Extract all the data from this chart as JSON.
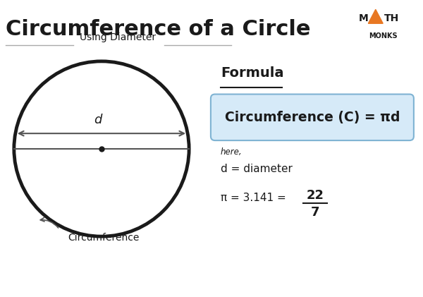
{
  "title": "Circumference of a Circle",
  "subtitle": "Using Diameter",
  "bg_color": "#ffffff",
  "title_color": "#1a1a1a",
  "subtitle_color": "#1a1a1a",
  "formula_label": "Formula",
  "formula_text": "Circumference (C) = πd",
  "formula_box_color": "#d6eaf8",
  "formula_box_edge": "#7fb3d3",
  "here_text": "here,",
  "d_text": "d = diameter",
  "pi_text": "π = 3.141 = ",
  "frac_num": "22",
  "frac_den": "7",
  "circle_color": "#1a1a1a",
  "circle_lw": 3.5,
  "diameter_line_color": "#555555",
  "arrow_color": "#555555",
  "dot_color": "#1a1a1a",
  "d_label": "d",
  "circumference_label": "Circumference",
  "mathmonks_color": "#1a1a1a",
  "triangle_color": "#e87722"
}
